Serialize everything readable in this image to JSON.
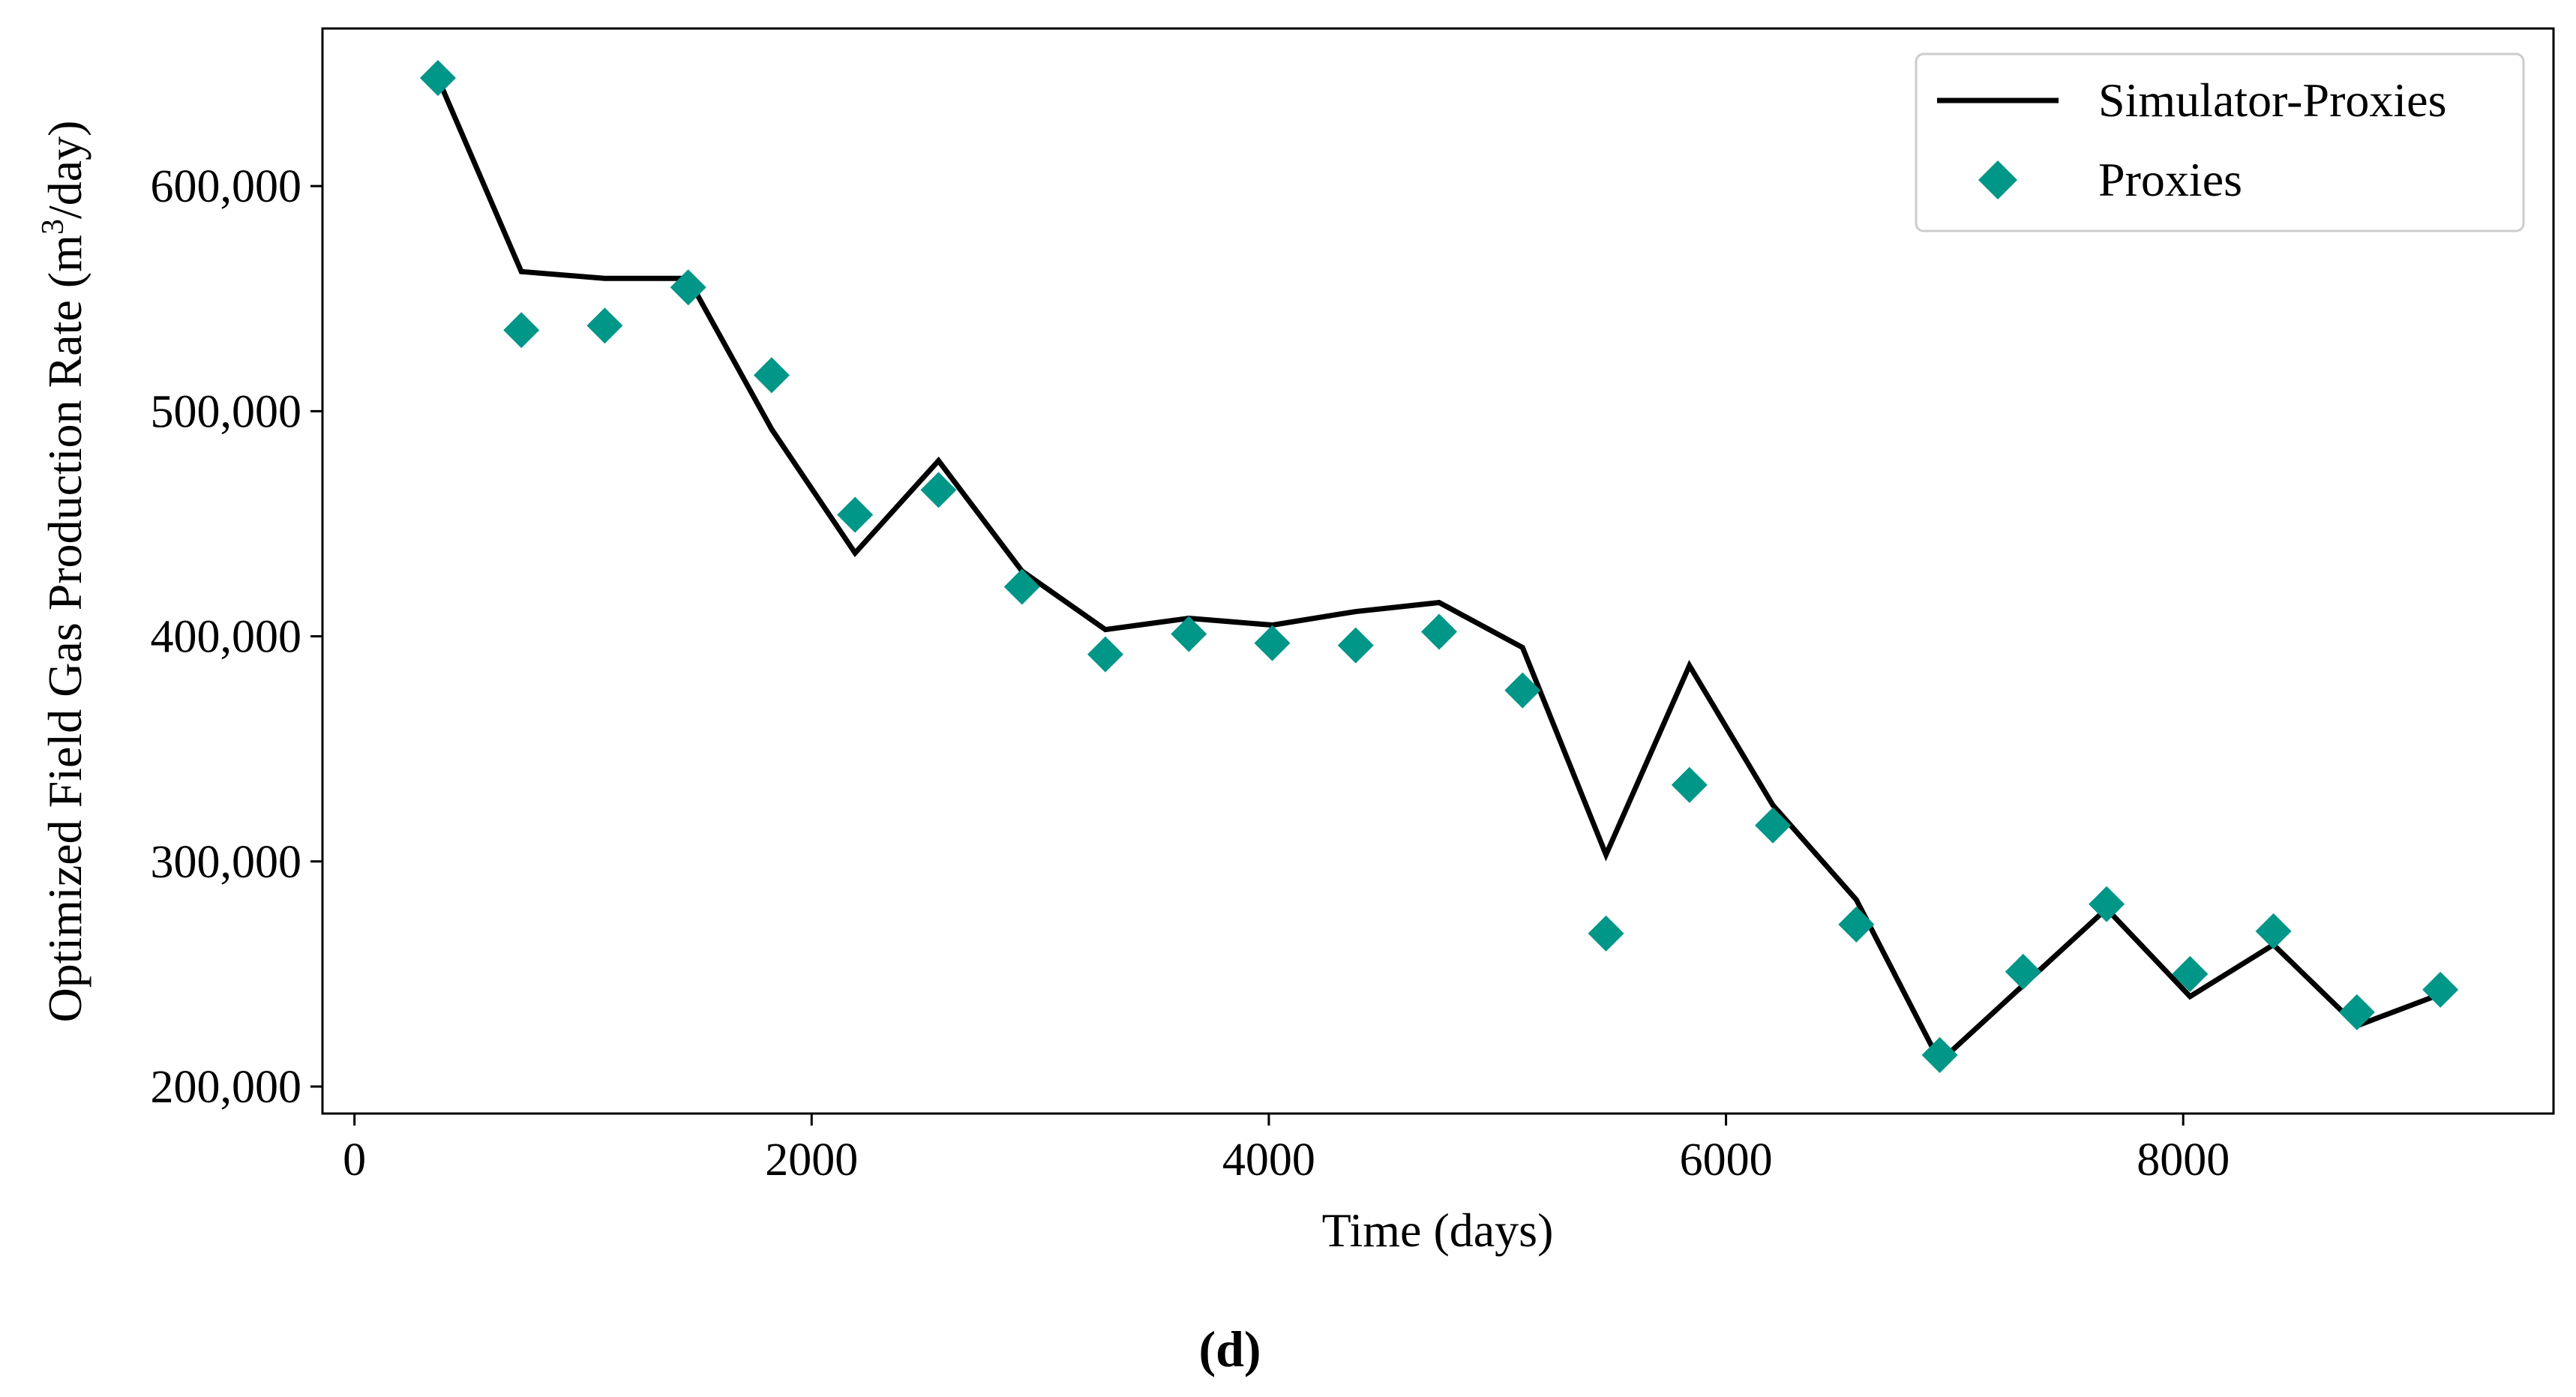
{
  "chart_data": {
    "type": "line",
    "title": "",
    "xlabel": "Time (days)",
    "ylabel_prefix": "Optimized Field Gas Production Rate (m",
    "ylabel_sup": "3",
    "ylabel_suffix": "/day)",
    "panel_label": "(d)",
    "xlim": [
      -140,
      9620
    ],
    "ylim": [
      188000,
      670000
    ],
    "xticks": [
      0,
      2000,
      4000,
      6000,
      8000
    ],
    "xtick_labels": [
      "0",
      "2000",
      "4000",
      "6000",
      "8000"
    ],
    "yticks": [
      200000,
      300000,
      400000,
      500000,
      600000
    ],
    "ytick_labels": [
      "200,000",
      "300,000",
      "400,000",
      "500,000",
      "600,000"
    ],
    "legend_position": "upper-right",
    "x": [
      365,
      730,
      1095,
      1460,
      1825,
      2190,
      2555,
      2920,
      3285,
      3650,
      4015,
      4380,
      4745,
      5110,
      5475,
      5840,
      6205,
      6570,
      6935,
      7300,
      7665,
      8030,
      8395,
      8760,
      9125
    ],
    "series": [
      {
        "name": "Simulator-Proxies",
        "style": "line",
        "color": "#000000",
        "values": [
          648000,
          562000,
          559000,
          559000,
          492000,
          437000,
          478000,
          429000,
          403000,
          408000,
          405000,
          411000,
          415000,
          395000,
          303000,
          387000,
          325000,
          283000,
          211000,
          245000,
          279000,
          240000,
          263000,
          227000,
          241000
        ]
      },
      {
        "name": "Proxies",
        "style": "marker-diamond",
        "color": "#009688",
        "values": [
          648000,
          536000,
          538000,
          555000,
          516000,
          454000,
          465000,
          422000,
          392000,
          401000,
          397000,
          396000,
          402000,
          376000,
          268000,
          334000,
          316000,
          272000,
          214000,
          251000,
          281000,
          250000,
          269000,
          233000,
          243000
        ]
      }
    ]
  }
}
